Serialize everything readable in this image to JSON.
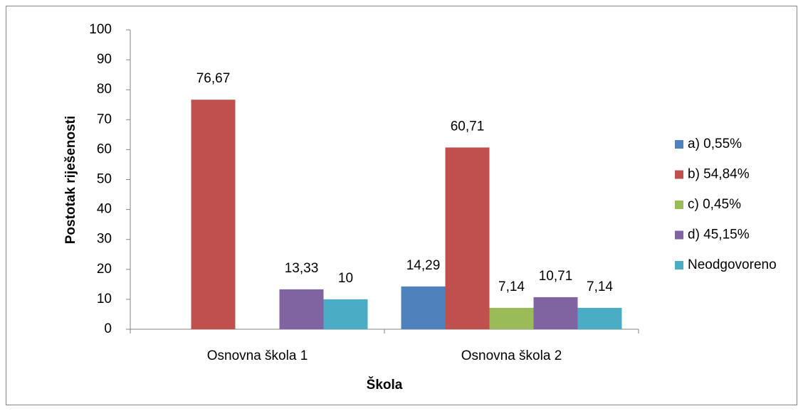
{
  "chart_data": {
    "type": "bar",
    "y_label": "Postotak riješenosti",
    "x_label": "Škola",
    "categories": [
      "Osnovna škola 1",
      "Osnovna škola 2"
    ],
    "series": [
      {
        "name": "a) 0,55%",
        "color": "#4f81bd",
        "values": [
          null,
          14.29
        ],
        "value_labels": [
          null,
          "14,29"
        ]
      },
      {
        "name": "b) 54,84%",
        "color": "#c0504d",
        "values": [
          76.67,
          60.71
        ],
        "value_labels": [
          "76,67",
          "60,71"
        ]
      },
      {
        "name": "c) 0,45%",
        "color": "#9bbb59",
        "values": [
          null,
          7.14
        ],
        "value_labels": [
          null,
          "7,14"
        ]
      },
      {
        "name": "d) 45,15%",
        "color": "#8064a2",
        "values": [
          13.33,
          10.71
        ],
        "value_labels": [
          "13,33",
          "10,71"
        ]
      },
      {
        "name": "Neodgovoreno",
        "color": "#4bacc6",
        "values": [
          10,
          7.14
        ],
        "value_labels": [
          "10",
          "7,14"
        ]
      }
    ],
    "ylim": [
      0,
      100
    ],
    "yticks": [
      0,
      10,
      20,
      30,
      40,
      50,
      60,
      70,
      80,
      90,
      100
    ],
    "legend": "right"
  }
}
